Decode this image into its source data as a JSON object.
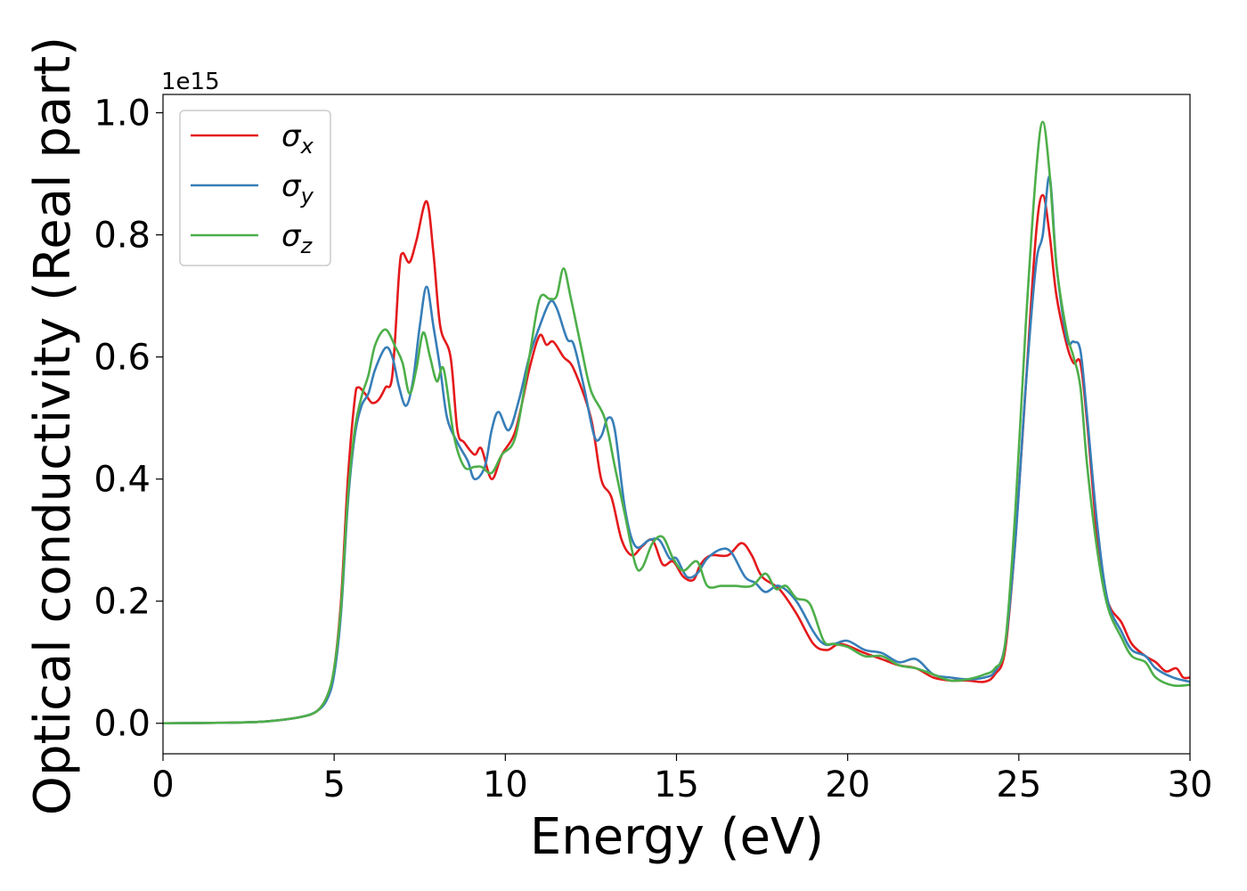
{
  "chart_data": {
    "type": "line",
    "xlabel": "Energy (eV)",
    "ylabel": "Optical conductivity (Real part)",
    "y_offset_label": "1e15",
    "xlim": [
      0,
      30
    ],
    "ylim": [
      -0.05,
      1.03
    ],
    "xticks": [
      "0",
      "5",
      "10",
      "15",
      "20",
      "25",
      "30"
    ],
    "yticks": [
      "0.0",
      "0.2",
      "0.4",
      "0.6",
      "0.8",
      "1.0"
    ],
    "legend_position": "top-left",
    "grid": false,
    "series": [
      {
        "name": "σx",
        "label_main": "σ",
        "label_sub": "x",
        "color": "#e41a1c",
        "points": [
          [
            0,
            0.0
          ],
          [
            2,
            0.001
          ],
          [
            3,
            0.003
          ],
          [
            4,
            0.01
          ],
          [
            4.5,
            0.02
          ],
          [
            4.8,
            0.045
          ],
          [
            5.0,
            0.09
          ],
          [
            5.2,
            0.2
          ],
          [
            5.4,
            0.4
          ],
          [
            5.6,
            0.53
          ],
          [
            5.7,
            0.55
          ],
          [
            5.9,
            0.54
          ],
          [
            6.1,
            0.525
          ],
          [
            6.3,
            0.53
          ],
          [
            6.5,
            0.55
          ],
          [
            6.7,
            0.57
          ],
          [
            6.9,
            0.74
          ],
          [
            7.0,
            0.77
          ],
          [
            7.2,
            0.755
          ],
          [
            7.4,
            0.79
          ],
          [
            7.7,
            0.855
          ],
          [
            7.9,
            0.77
          ],
          [
            8.1,
            0.65
          ],
          [
            8.4,
            0.6
          ],
          [
            8.6,
            0.48
          ],
          [
            8.8,
            0.46
          ],
          [
            9.1,
            0.44
          ],
          [
            9.3,
            0.45
          ],
          [
            9.6,
            0.4
          ],
          [
            9.9,
            0.44
          ],
          [
            10.3,
            0.48
          ],
          [
            10.7,
            0.58
          ],
          [
            11.0,
            0.635
          ],
          [
            11.2,
            0.62
          ],
          [
            11.4,
            0.625
          ],
          [
            11.7,
            0.6
          ],
          [
            12.0,
            0.58
          ],
          [
            12.5,
            0.5
          ],
          [
            12.8,
            0.4
          ],
          [
            13.1,
            0.37
          ],
          [
            13.4,
            0.3
          ],
          [
            13.7,
            0.275
          ],
          [
            14.0,
            0.29
          ],
          [
            14.3,
            0.3
          ],
          [
            14.6,
            0.26
          ],
          [
            14.9,
            0.265
          ],
          [
            15.2,
            0.24
          ],
          [
            15.5,
            0.235
          ],
          [
            15.7,
            0.26
          ],
          [
            16.0,
            0.275
          ],
          [
            16.5,
            0.275
          ],
          [
            16.9,
            0.295
          ],
          [
            17.2,
            0.275
          ],
          [
            17.5,
            0.24
          ],
          [
            18.0,
            0.22
          ],
          [
            18.5,
            0.18
          ],
          [
            19.0,
            0.13
          ],
          [
            19.4,
            0.12
          ],
          [
            19.8,
            0.13
          ],
          [
            20.5,
            0.115
          ],
          [
            21.0,
            0.105
          ],
          [
            21.5,
            0.095
          ],
          [
            22.0,
            0.09
          ],
          [
            22.5,
            0.075
          ],
          [
            23.0,
            0.07
          ],
          [
            23.5,
            0.07
          ],
          [
            24.0,
            0.068
          ],
          [
            24.3,
            0.08
          ],
          [
            24.6,
            0.12
          ],
          [
            24.9,
            0.3
          ],
          [
            25.2,
            0.55
          ],
          [
            25.5,
            0.8
          ],
          [
            25.7,
            0.865
          ],
          [
            25.9,
            0.8
          ],
          [
            26.1,
            0.7
          ],
          [
            26.4,
            0.62
          ],
          [
            26.6,
            0.59
          ],
          [
            26.8,
            0.59
          ],
          [
            27.0,
            0.49
          ],
          [
            27.3,
            0.3
          ],
          [
            27.6,
            0.2
          ],
          [
            28.0,
            0.165
          ],
          [
            28.3,
            0.13
          ],
          [
            28.7,
            0.11
          ],
          [
            29.0,
            0.1
          ],
          [
            29.3,
            0.085
          ],
          [
            29.6,
            0.09
          ],
          [
            29.8,
            0.075
          ],
          [
            30,
            0.075
          ]
        ]
      },
      {
        "name": "σy",
        "label_main": "σ",
        "label_sub": "y",
        "color": "#377eb8",
        "points": [
          [
            0,
            0.0
          ],
          [
            2,
            0.001
          ],
          [
            3,
            0.003
          ],
          [
            4,
            0.01
          ],
          [
            4.5,
            0.02
          ],
          [
            4.8,
            0.04
          ],
          [
            5.0,
            0.08
          ],
          [
            5.2,
            0.18
          ],
          [
            5.4,
            0.36
          ],
          [
            5.6,
            0.47
          ],
          [
            5.8,
            0.52
          ],
          [
            6.0,
            0.54
          ],
          [
            6.2,
            0.58
          ],
          [
            6.5,
            0.615
          ],
          [
            6.7,
            0.6
          ],
          [
            6.9,
            0.55
          ],
          [
            7.1,
            0.52
          ],
          [
            7.3,
            0.56
          ],
          [
            7.5,
            0.65
          ],
          [
            7.7,
            0.715
          ],
          [
            7.9,
            0.65
          ],
          [
            8.1,
            0.58
          ],
          [
            8.3,
            0.5
          ],
          [
            8.6,
            0.46
          ],
          [
            8.9,
            0.43
          ],
          [
            9.1,
            0.4
          ],
          [
            9.4,
            0.42
          ],
          [
            9.6,
            0.48
          ],
          [
            9.8,
            0.51
          ],
          [
            10.1,
            0.48
          ],
          [
            10.4,
            0.53
          ],
          [
            10.7,
            0.6
          ],
          [
            11.0,
            0.65
          ],
          [
            11.3,
            0.69
          ],
          [
            11.5,
            0.68
          ],
          [
            11.8,
            0.63
          ],
          [
            12.0,
            0.62
          ],
          [
            12.3,
            0.55
          ],
          [
            12.6,
            0.47
          ],
          [
            12.8,
            0.47
          ],
          [
            13.0,
            0.5
          ],
          [
            13.2,
            0.48
          ],
          [
            13.5,
            0.35
          ],
          [
            13.8,
            0.29
          ],
          [
            14.2,
            0.3
          ],
          [
            14.5,
            0.3
          ],
          [
            14.8,
            0.27
          ],
          [
            15.0,
            0.27
          ],
          [
            15.3,
            0.24
          ],
          [
            15.6,
            0.245
          ],
          [
            15.9,
            0.27
          ],
          [
            16.3,
            0.285
          ],
          [
            16.6,
            0.28
          ],
          [
            17.0,
            0.24
          ],
          [
            17.3,
            0.23
          ],
          [
            17.6,
            0.215
          ],
          [
            18.0,
            0.225
          ],
          [
            18.5,
            0.2
          ],
          [
            19.0,
            0.15
          ],
          [
            19.3,
            0.13
          ],
          [
            19.6,
            0.13
          ],
          [
            20.0,
            0.135
          ],
          [
            20.5,
            0.12
          ],
          [
            21.0,
            0.115
          ],
          [
            21.5,
            0.1
          ],
          [
            22.0,
            0.105
          ],
          [
            22.5,
            0.08
          ],
          [
            23.0,
            0.075
          ],
          [
            23.5,
            0.072
          ],
          [
            24.0,
            0.075
          ],
          [
            24.3,
            0.085
          ],
          [
            24.6,
            0.13
          ],
          [
            24.9,
            0.3
          ],
          [
            25.2,
            0.55
          ],
          [
            25.5,
            0.75
          ],
          [
            25.7,
            0.8
          ],
          [
            25.9,
            0.895
          ],
          [
            26.1,
            0.75
          ],
          [
            26.4,
            0.63
          ],
          [
            26.6,
            0.625
          ],
          [
            26.8,
            0.61
          ],
          [
            27.0,
            0.5
          ],
          [
            27.3,
            0.32
          ],
          [
            27.6,
            0.2
          ],
          [
            28.0,
            0.15
          ],
          [
            28.3,
            0.12
          ],
          [
            28.7,
            0.11
          ],
          [
            29.0,
            0.09
          ],
          [
            29.5,
            0.075
          ],
          [
            30,
            0.068
          ]
        ]
      },
      {
        "name": "σz",
        "label_main": "σ",
        "label_sub": "z",
        "color": "#4daf4a",
        "points": [
          [
            0,
            0.0
          ],
          [
            2,
            0.001
          ],
          [
            3,
            0.003
          ],
          [
            4,
            0.01
          ],
          [
            4.5,
            0.02
          ],
          [
            4.8,
            0.045
          ],
          [
            5.0,
            0.09
          ],
          [
            5.2,
            0.19
          ],
          [
            5.4,
            0.37
          ],
          [
            5.6,
            0.48
          ],
          [
            5.8,
            0.535
          ],
          [
            6.0,
            0.57
          ],
          [
            6.2,
            0.62
          ],
          [
            6.5,
            0.645
          ],
          [
            6.8,
            0.615
          ],
          [
            7.0,
            0.59
          ],
          [
            7.2,
            0.54
          ],
          [
            7.4,
            0.58
          ],
          [
            7.6,
            0.64
          ],
          [
            7.8,
            0.6
          ],
          [
            8.0,
            0.56
          ],
          [
            8.2,
            0.58
          ],
          [
            8.5,
            0.47
          ],
          [
            8.8,
            0.42
          ],
          [
            9.1,
            0.42
          ],
          [
            9.3,
            0.42
          ],
          [
            9.6,
            0.41
          ],
          [
            9.9,
            0.44
          ],
          [
            10.3,
            0.47
          ],
          [
            10.7,
            0.6
          ],
          [
            11.0,
            0.695
          ],
          [
            11.3,
            0.695
          ],
          [
            11.5,
            0.7
          ],
          [
            11.7,
            0.745
          ],
          [
            11.9,
            0.7
          ],
          [
            12.2,
            0.62
          ],
          [
            12.5,
            0.545
          ],
          [
            12.9,
            0.5
          ],
          [
            13.2,
            0.42
          ],
          [
            13.5,
            0.34
          ],
          [
            13.8,
            0.26
          ],
          [
            14.0,
            0.255
          ],
          [
            14.3,
            0.295
          ],
          [
            14.6,
            0.305
          ],
          [
            14.9,
            0.27
          ],
          [
            15.2,
            0.25
          ],
          [
            15.6,
            0.265
          ],
          [
            15.9,
            0.225
          ],
          [
            16.3,
            0.225
          ],
          [
            16.7,
            0.225
          ],
          [
            17.2,
            0.225
          ],
          [
            17.6,
            0.245
          ],
          [
            17.9,
            0.22
          ],
          [
            18.2,
            0.225
          ],
          [
            18.5,
            0.205
          ],
          [
            18.9,
            0.195
          ],
          [
            19.3,
            0.135
          ],
          [
            19.6,
            0.13
          ],
          [
            20.0,
            0.125
          ],
          [
            20.5,
            0.11
          ],
          [
            21.0,
            0.11
          ],
          [
            21.5,
            0.095
          ],
          [
            22.0,
            0.09
          ],
          [
            22.5,
            0.08
          ],
          [
            23.0,
            0.07
          ],
          [
            23.5,
            0.072
          ],
          [
            24.0,
            0.08
          ],
          [
            24.3,
            0.09
          ],
          [
            24.6,
            0.13
          ],
          [
            24.9,
            0.35
          ],
          [
            25.2,
            0.65
          ],
          [
            25.5,
            0.9
          ],
          [
            25.7,
            0.985
          ],
          [
            25.9,
            0.9
          ],
          [
            26.1,
            0.75
          ],
          [
            26.4,
            0.64
          ],
          [
            26.6,
            0.6
          ],
          [
            26.8,
            0.55
          ],
          [
            27.0,
            0.42
          ],
          [
            27.3,
            0.28
          ],
          [
            27.6,
            0.19
          ],
          [
            28.0,
            0.14
          ],
          [
            28.3,
            0.11
          ],
          [
            28.7,
            0.1
          ],
          [
            29.0,
            0.075
          ],
          [
            29.5,
            0.062
          ],
          [
            30,
            0.063
          ]
        ]
      }
    ]
  }
}
